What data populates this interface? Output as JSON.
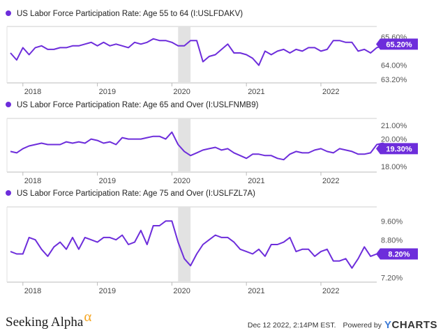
{
  "chart_data": [
    {
      "type": "line",
      "title": "US Labor Force Participation Rate: Age 55 to 64 (I:USLFDAKV)",
      "color": "#6d2ddb",
      "ylim": [
        63.0,
        66.2
      ],
      "y_ticks": [
        63.2,
        64.0,
        65.6
      ],
      "y_tick_labels": [
        "63.20%",
        "64.00%",
        "65.60%"
      ],
      "x_tick_labels": [
        "2018",
        "2019",
        "2020",
        "2021",
        "2022"
      ],
      "start_month": "2017-11",
      "recession_shading": [
        "2020-02",
        "2020-04"
      ],
      "last_value_label": "65.20%",
      "values": [
        64.7,
        64.3,
        65.0,
        64.6,
        65.0,
        65.1,
        64.9,
        64.9,
        65.0,
        65.0,
        65.1,
        65.1,
        65.2,
        65.3,
        65.1,
        65.3,
        65.1,
        65.2,
        65.1,
        65.0,
        65.3,
        65.2,
        65.3,
        65.5,
        65.4,
        65.4,
        65.3,
        65.1,
        65.1,
        65.4,
        65.4,
        64.2,
        64.5,
        64.6,
        64.9,
        65.2,
        64.7,
        64.7,
        64.6,
        64.4,
        64.0,
        64.8,
        64.6,
        64.8,
        64.9,
        64.7,
        64.9,
        64.8,
        65.0,
        65.0,
        64.8,
        64.9,
        65.4,
        65.4,
        65.3,
        65.3,
        64.8,
        64.9,
        64.7,
        65.0,
        65.1,
        65.2
      ]
    },
    {
      "type": "line",
      "title": "US Labor Force Participation Rate: Age 65 and Over (I:USLFNMB9)",
      "color": "#6d2ddb",
      "ylim": [
        17.6,
        21.5
      ],
      "y_ticks": [
        18.0,
        20.0,
        21.0
      ],
      "y_tick_labels": [
        "18.00%",
        "20.00%",
        "21.00%"
      ],
      "x_tick_labels": [
        "2018",
        "2019",
        "2020",
        "2021",
        "2022"
      ],
      "start_month": "2017-11",
      "recession_shading": [
        "2020-02",
        "2020-04"
      ],
      "last_value_label": "19.30%",
      "values": [
        19.1,
        19.0,
        19.3,
        19.5,
        19.6,
        19.7,
        19.6,
        19.6,
        19.6,
        19.8,
        19.7,
        19.8,
        19.7,
        20.0,
        19.9,
        19.7,
        19.8,
        19.6,
        20.1,
        20.0,
        20.0,
        20.0,
        20.1,
        20.2,
        20.2,
        20.0,
        20.5,
        19.6,
        19.1,
        18.8,
        19.0,
        19.2,
        19.3,
        19.4,
        19.2,
        19.3,
        19.0,
        18.8,
        18.6,
        18.9,
        18.9,
        18.8,
        18.8,
        18.6,
        18.5,
        18.9,
        19.1,
        19.0,
        19.0,
        19.2,
        19.3,
        19.1,
        19.0,
        19.3,
        19.2,
        19.1,
        18.9,
        18.9,
        19.0,
        19.6,
        19.7,
        19.3
      ]
    },
    {
      "type": "line",
      "title": "US Labor Force Participation Rate: Age 75 and Over (I:USLFZL7A)",
      "color": "#6d2ddb",
      "ylim": [
        7.0,
        10.2
      ],
      "y_ticks": [
        7.2,
        8.8,
        9.6
      ],
      "y_tick_labels": [
        "7.20%",
        "8.80%",
        "9.60%"
      ],
      "x_tick_labels": [
        "2018",
        "2019",
        "2020",
        "2021",
        "2022"
      ],
      "start_month": "2017-11",
      "recession_shading": [
        "2020-02",
        "2020-04"
      ],
      "last_value_label": "8.20%",
      "values": [
        8.3,
        8.2,
        8.2,
        8.9,
        8.8,
        8.4,
        8.1,
        8.5,
        8.7,
        8.4,
        8.9,
        8.4,
        8.9,
        8.8,
        8.7,
        8.9,
        8.9,
        8.8,
        9.0,
        8.6,
        8.7,
        9.2,
        8.6,
        9.4,
        9.4,
        9.6,
        9.6,
        8.7,
        8.0,
        7.7,
        8.2,
        8.6,
        8.8,
        9.0,
        8.9,
        8.9,
        8.7,
        8.4,
        8.3,
        8.2,
        8.4,
        8.1,
        8.6,
        8.6,
        8.7,
        8.9,
        8.3,
        8.4,
        8.4,
        8.1,
        8.3,
        8.4,
        7.9,
        7.9,
        8.0,
        7.6,
        8.0,
        8.5,
        8.1,
        8.2,
        8.2
      ]
    }
  ],
  "footer": {
    "brand": "Seeking Alpha",
    "brand_symbol": "α",
    "timestamp": "Dec 12 2022, 2:14PM EST.",
    "powered_by": "Powered by",
    "ycharts_y": "Y",
    "ycharts_rest": "CHARTS"
  }
}
